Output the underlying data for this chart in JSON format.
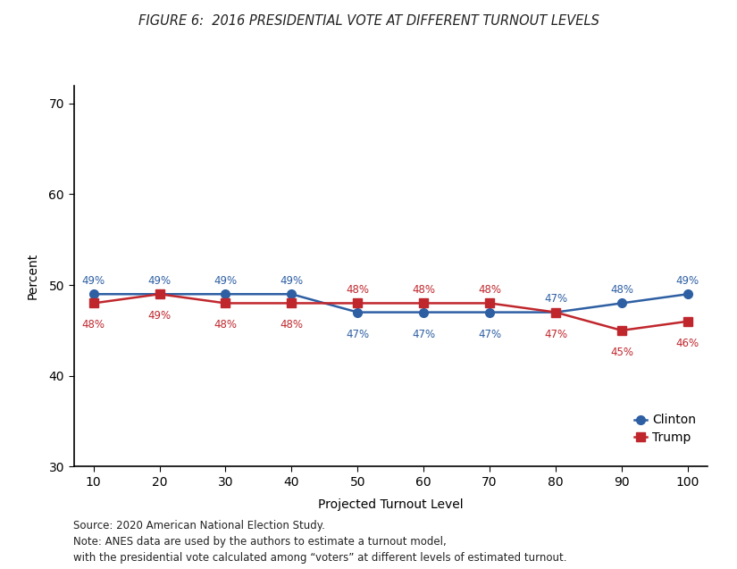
{
  "title": "FIGURE 6:  2016 PRESIDENTIAL VOTE AT DIFFERENT TURNOUT LEVELS",
  "xlabel": "Projected Turnout Level",
  "ylabel": "Percent",
  "x": [
    10,
    20,
    30,
    40,
    50,
    60,
    70,
    80,
    90,
    100
  ],
  "clinton": [
    49,
    49,
    49,
    49,
    47,
    47,
    47,
    47,
    48,
    49
  ],
  "trump": [
    48,
    49,
    48,
    48,
    48,
    48,
    48,
    47,
    45,
    46
  ],
  "clinton_labels": [
    "49%",
    "49%",
    "49%",
    "49%",
    "47%",
    "47%",
    "47%",
    "47%",
    "48%",
    "49%"
  ],
  "trump_labels": [
    "48%",
    "49%",
    "48%",
    "48%",
    "48%",
    "48%",
    "48%",
    "47%",
    "45%",
    "46%"
  ],
  "clinton_color": "#2E5FA3",
  "trump_color": "#C0272D",
  "ylim": [
    30,
    72
  ],
  "yticks": [
    30,
    40,
    50,
    60,
    70
  ],
  "xticks": [
    10,
    20,
    30,
    40,
    50,
    60,
    70,
    80,
    90,
    100
  ],
  "legend_labels": [
    "Clinton",
    "Trump"
  ],
  "source_text": "Source: 2020 American National Election Study.\nNote: ANES data are used by the authors to estimate a turnout model,\nwith the presidential vote calculated among “voters” at different levels of estimated turnout.",
  "background_color": "#ffffff",
  "title_fontsize": 10.5,
  "axis_fontsize": 10,
  "label_fontsize": 8.5,
  "legend_fontsize": 10,
  "source_fontsize": 8.5
}
